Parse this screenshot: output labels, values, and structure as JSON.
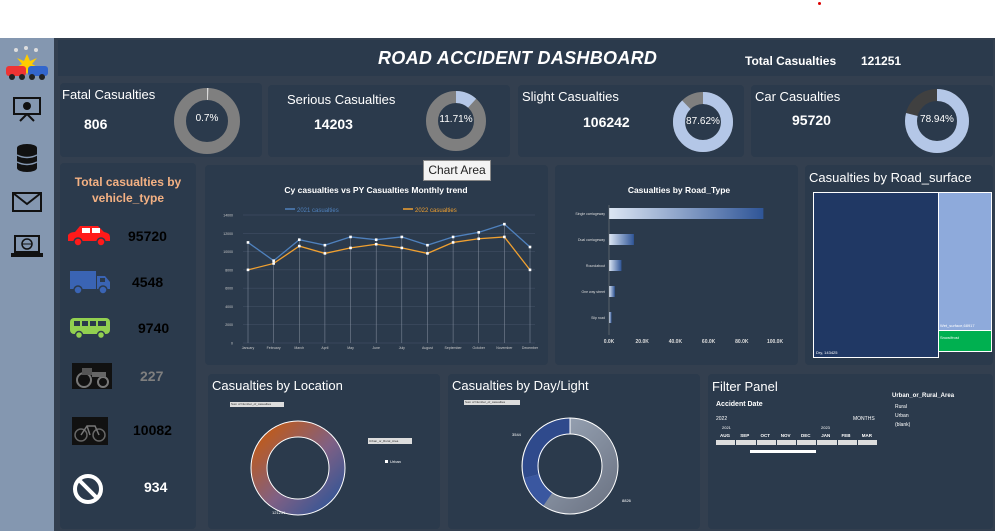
{
  "dashboard": {
    "title": "ROAD ACCIDENT DASHBOARD",
    "total_label": "Total Casualties",
    "total_value": "121251"
  },
  "sidebar": {
    "icons": [
      "car-crash-icon",
      "presentation-icon",
      "database-icon",
      "mail-icon",
      "laptop-globe-icon"
    ]
  },
  "kpis": [
    {
      "label": "Fatal Casualties",
      "value": "806",
      "pct": "0.7%",
      "fraction": 0.007
    },
    {
      "label": "Serious Casualties",
      "value": "14203",
      "pct": "11.71%",
      "fraction": 0.1171
    },
    {
      "label": "Slight Casualties",
      "value": "106242",
      "pct": "87.62%",
      "fraction": 0.8762
    },
    {
      "label": "Car Casualties",
      "value": "95720",
      "pct": "78.94%",
      "fraction": 0.7894
    }
  ],
  "vehicle": {
    "title_line1": "Total casualties by",
    "title_line2": "vehicle_type",
    "items": [
      {
        "icon": "car-icon",
        "value": "95720",
        "color": "#ff2020"
      },
      {
        "icon": "truck-icon",
        "value": "4548",
        "color": "#3a64b4"
      },
      {
        "icon": "bus-icon",
        "value": "9740",
        "color": "#92d050"
      },
      {
        "icon": "tractor-icon",
        "value": "227",
        "color": "#7f7f7f"
      },
      {
        "icon": "bicycle-icon",
        "value": "10082",
        "color": "#000000"
      },
      {
        "icon": "ban-icon",
        "value": "934",
        "color": "#ffffff"
      }
    ]
  },
  "tooltip": "Chart Area",
  "trend": {
    "chart_data": {
      "type": "line",
      "title": "Cy casualties vs PY Casualties Monthly trend",
      "categories": [
        "January",
        "February",
        "March",
        "April",
        "May",
        "June",
        "July",
        "August",
        "September",
        "October",
        "November",
        "December"
      ],
      "series": [
        {
          "name": "2021 casualties",
          "color": "#4f81bd",
          "values": [
            11000,
            9000,
            11300,
            10700,
            11600,
            11300,
            11600,
            10700,
            11600,
            12100,
            13000,
            10500
          ]
        },
        {
          "name": "2022 casualties",
          "color": "#f0a030",
          "values": [
            8000,
            8700,
            10600,
            9800,
            10400,
            10800,
            10400,
            9800,
            11000,
            11400,
            11600,
            8000
          ]
        }
      ],
      "ylim": [
        0,
        14000
      ],
      "yticks": [
        "0",
        "2000",
        "4000",
        "6000",
        "8000",
        "10000",
        "12000",
        "14000"
      ],
      "grid": true,
      "legend": "top"
    }
  },
  "road_type": {
    "chart_data": {
      "type": "bar",
      "title": "Casualties by Road_Type",
      "categories": [
        "Single carriageway",
        "Dual carriageway",
        "Roundabout",
        "One way street",
        "Slip road"
      ],
      "values": [
        93000,
        15000,
        7500,
        3500,
        1500
      ],
      "xlim": [
        0,
        100000
      ],
      "xticks": [
        "0.0K",
        "20.0K",
        "40.0K",
        "60.0K",
        "80.0K",
        "100.0K"
      ]
    }
  },
  "road_surface": {
    "title": "Casualties by Road_surface",
    "chart_data": {
      "type": "treemap",
      "values": [
        {
          "name": "Dry",
          "value": "Dry, 143425"
        },
        {
          "name": "Wet",
          "value": "Wet_surface,68917"
        },
        {
          "name": "Snow",
          "value": "Snow/frost"
        }
      ]
    }
  },
  "location": {
    "title": "Casualties by Location",
    "field_label": "Sum of Number_of_casualties",
    "legend_label": "Urban_or_Rural_Area",
    "legend_item": "Urban",
    "value_label": "121251"
  },
  "daylight": {
    "title": "Casualties by Day/Light",
    "field_label": "Sum of Number_of_casualties",
    "value_dark": "3544",
    "value_light": "8826"
  },
  "filter": {
    "title": "Filter Panel",
    "date_label": "Accident Date",
    "months_label": "MONTHS",
    "year_2022": "2022",
    "year_2021": "2021",
    "year_2023": "2023",
    "months": [
      "AUG",
      "SEP",
      "OCT",
      "NOV",
      "DEC",
      "JAN",
      "FEB",
      "MAR"
    ],
    "area_title": "Urban_or_Rural_Area",
    "area_items": [
      "Rural",
      "Urban",
      "(blank)"
    ]
  }
}
